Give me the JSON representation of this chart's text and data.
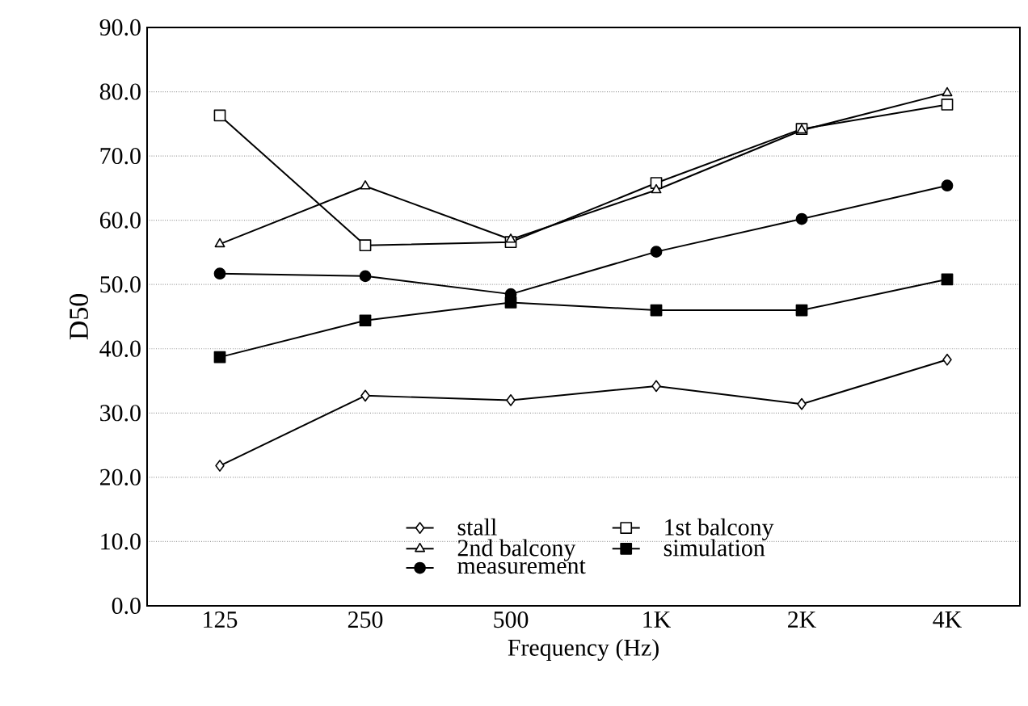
{
  "chart_data": {
    "type": "line",
    "xlabel": "Frequency (Hz)",
    "ylabel": "D50",
    "categories": [
      "125",
      "250",
      "500",
      "1K",
      "2K",
      "4K"
    ],
    "ylim": [
      0,
      90
    ],
    "yticks": [
      {
        "value": 0,
        "label": "0.0"
      },
      {
        "value": 10,
        "label": "10.0"
      },
      {
        "value": 20,
        "label": "20.0"
      },
      {
        "value": 30,
        "label": "30.0"
      },
      {
        "value": 40,
        "label": "40.0"
      },
      {
        "value": 50,
        "label": "50.0"
      },
      {
        "value": 60,
        "label": "60.0"
      },
      {
        "value": 70,
        "label": "70.0"
      },
      {
        "value": 80,
        "label": "80.0"
      },
      {
        "value": 90,
        "label": "90.0"
      }
    ],
    "grid": "y",
    "legend": "bottom",
    "line_style": "solid",
    "series": [
      {
        "name": "stall",
        "color": "#000000",
        "marker": "diamond",
        "values": [
          21.8,
          32.7,
          32.0,
          34.2,
          31.4,
          38.3
        ]
      },
      {
        "name": "1st balcony",
        "color": "#000000",
        "marker": "square",
        "values": [
          76.3,
          56.1,
          56.6,
          65.8,
          74.2,
          78.0
        ]
      },
      {
        "name": "2nd balcony",
        "color": "#000000",
        "marker": "triangle",
        "values": [
          56.3,
          65.3,
          57.0,
          64.7,
          74.0,
          79.8
        ]
      },
      {
        "name": "simulation",
        "color": "#000000",
        "marker": "square",
        "values": [
          38.7,
          44.4,
          47.2,
          46.0,
          46.0,
          50.8
        ]
      },
      {
        "name": "measurement",
        "color": "#000000",
        "marker": "circle",
        "values": [
          51.7,
          51.3,
          48.5,
          55.1,
          60.2,
          65.4
        ]
      }
    ]
  }
}
